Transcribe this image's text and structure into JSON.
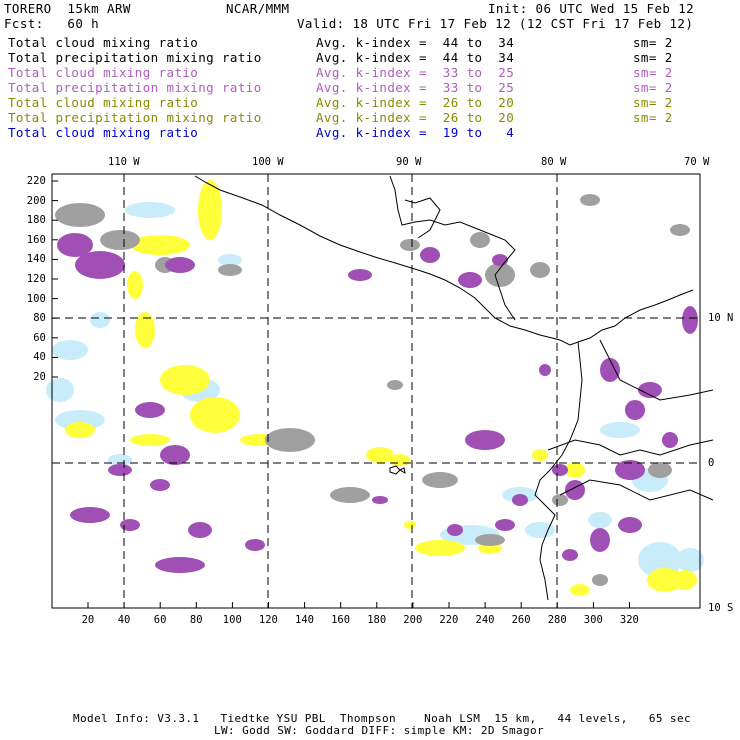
{
  "header": {
    "model": "TORERO  15km ARW",
    "org": "NCAR/MMM",
    "init": "Init: 06 UTC Wed 15 Feb 12",
    "fcst": "Fcst:   60 h",
    "valid": "Valid: 18 UTC Fri 17 Feb 12 (12 CST Fri 17 Feb 12)"
  },
  "legend": [
    {
      "field": "Total cloud mixing ratio",
      "kindex": "Avg. k-index =  44 to  34",
      "sm": "sm= 2",
      "color": "#000000"
    },
    {
      "field": "Total precipitation mixing ratio",
      "kindex": "Avg. k-index =  44 to  34",
      "sm": "sm= 2",
      "color": "#000000"
    },
    {
      "field": "Total cloud mixing ratio",
      "kindex": "Avg. k-index =  33 to  25",
      "sm": "sm= 2",
      "color": "#b05cc0"
    },
    {
      "field": "Total precipitation mixing ratio",
      "kindex": "Avg. k-index =  33 to  25",
      "sm": "sm= 2",
      "color": "#b05cc0"
    },
    {
      "field": "Total cloud mixing ratio",
      "kindex": "Avg. k-index =  26 to  20",
      "sm": "sm= 2",
      "color": "#8a8a00"
    },
    {
      "field": "Total precipitation mixing ratio",
      "kindex": "Avg. k-index =  26 to  20",
      "sm": "sm= 2",
      "color": "#8a8a00"
    },
    {
      "field": "Total cloud mixing ratio",
      "kindex": "Avg. k-index =  19 to   4",
      "sm": "",
      "color": "#0000cc"
    }
  ],
  "axes": {
    "x_ticks": [
      "20",
      "40",
      "60",
      "80",
      "100",
      "120",
      "140",
      "160",
      "180",
      "200",
      "220",
      "240",
      "260",
      "280",
      "300",
      "320"
    ],
    "y_ticks": [
      "220",
      "200",
      "180",
      "160",
      "140",
      "120",
      "100",
      "80",
      "60",
      "40",
      "20"
    ],
    "lon_labels": [
      "110 W",
      "100 W",
      "90 W",
      "80 W",
      "70 W"
    ],
    "lat_labels": [
      "10 N",
      "0",
      "10 S"
    ]
  },
  "colors": {
    "gray": "#a0a0a0",
    "purple": "#a050b4",
    "yellow": "#ffff3c",
    "lightblue": "#c8ecfa"
  },
  "footer": {
    "line1": "Model Info: V3.3.1   Tiedtke YSU PBL  Thompson    Noah LSM  15 km,   44 levels,   65 sec",
    "line2": "LW: Godd SW: Goddard DIFF: simple KM: 2D Smagor"
  }
}
